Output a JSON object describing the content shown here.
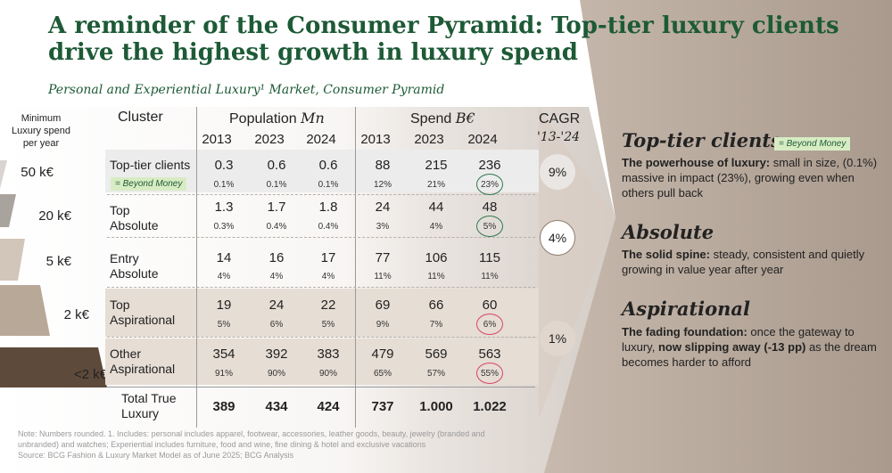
{
  "title": "A reminder of the Consumer Pyramid: Top-tier luxury clients drive the highest growth in luxury spend",
  "subtitle": "Personal and Experiential Luxury¹ Market, Consumer Pyramid",
  "pyramid": {
    "header": "Minimum Luxury spend per year",
    "levels": [
      "50 k€",
      "20 k€",
      "5 k€",
      "2 k€",
      "<2 k€"
    ]
  },
  "table": {
    "cluster_header": "Cluster",
    "population_header": "Population",
    "population_unit": "Mn",
    "spend_header": "Spend",
    "spend_unit": "B€",
    "years": [
      "2013",
      "2023",
      "2024"
    ],
    "cagr_header": "CAGR",
    "cagr_period": "'13-'24",
    "beyond_money_tag": "= Beyond Money",
    "rows": [
      {
        "name_line1": "Top-tier clients",
        "name_line2": "",
        "pop": [
          "0.3",
          "0.6",
          "0.6"
        ],
        "pop_share": [
          "0.1%",
          "0.1%",
          "0.1%"
        ],
        "spend": [
          "88",
          "215",
          "236"
        ],
        "spend_share": [
          "12%",
          "21%",
          "23%"
        ]
      },
      {
        "name_line1": "Top",
        "name_line2": "Absolute",
        "pop": [
          "1.3",
          "1.7",
          "1.8"
        ],
        "pop_share": [
          "0.3%",
          "0.4%",
          "0.4%"
        ],
        "spend": [
          "24",
          "44",
          "48"
        ],
        "spend_share": [
          "3%",
          "4%",
          "5%"
        ]
      },
      {
        "name_line1": "Entry",
        "name_line2": "Absolute",
        "pop": [
          "14",
          "16",
          "17"
        ],
        "pop_share": [
          "4%",
          "4%",
          "4%"
        ],
        "spend": [
          "77",
          "106",
          "115"
        ],
        "spend_share": [
          "11%",
          "11%",
          "11%"
        ]
      },
      {
        "name_line1": "Top",
        "name_line2": "Aspirational",
        "pop": [
          "19",
          "24",
          "22"
        ],
        "pop_share": [
          "5%",
          "6%",
          "5%"
        ],
        "spend": [
          "69",
          "66",
          "60"
        ],
        "spend_share": [
          "9%",
          "7%",
          "6%"
        ]
      },
      {
        "name_line1": "Other",
        "name_line2": "Aspirational",
        "pop": [
          "354",
          "392",
          "383"
        ],
        "pop_share": [
          "91%",
          "90%",
          "90%"
        ],
        "spend": [
          "479",
          "569",
          "563"
        ],
        "spend_share": [
          "65%",
          "57%",
          "55%"
        ]
      }
    ],
    "total": {
      "name_line1": "Total True",
      "name_line2": "Luxury",
      "pop": [
        "389",
        "434",
        "424"
      ],
      "spend": [
        "737",
        "1.000",
        "1.022"
      ]
    },
    "cagr": [
      "9%",
      "4%",
      "1%"
    ]
  },
  "segments": [
    {
      "title": "Top-tier clients",
      "tag": "= Beyond Money",
      "desc_bold": "The powerhouse of luxury:",
      "desc_rest": " small in size, (0.1%) massive in impact (23%), growing even when others pull back"
    },
    {
      "title": "Absolute",
      "desc_bold": "The solid spine:",
      "desc_rest": " steady, consistent and quietly growing in value year after year"
    },
    {
      "title": "Aspirational",
      "desc_pre": "The fading foundation:",
      "desc_pre_rest": " once the gateway to luxury, ",
      "desc_bold": "now slipping away (-13 pp)",
      "desc_rest": " as the dream becomes harder to afford"
    }
  ],
  "note": {
    "line1": "Note: Numbers rounded. 1. Includes: personal includes apparel, footwear, accessories, leather goods, beauty, jewelry (branded and unbranded) and watches; Experiential includes furniture, food and wine, fine dining & hotel and exclusive vacations",
    "line2": "Source: BCG Fashion & Luxury Market Model as of June 2025; BCG Analysis"
  },
  "chart_data": {
    "type": "table",
    "title": "A reminder of the Consumer Pyramid: Top-tier luxury clients drive the highest growth in luxury spend",
    "subtitle": "Personal and Experiential Luxury¹ Market, Consumer Pyramid",
    "columns": [
      "Cluster",
      "Population Mn 2013",
      "Population Mn 2023",
      "Population Mn 2024",
      "Spend B€ 2013",
      "Spend B€ 2023",
      "Spend B€ 2024"
    ],
    "rows": [
      [
        "Top-tier clients",
        0.3,
        0.6,
        0.6,
        88,
        215,
        236
      ],
      [
        "Top Absolute",
        1.3,
        1.7,
        1.8,
        24,
        44,
        48
      ],
      [
        "Entry Absolute",
        14,
        16,
        17,
        77,
        106,
        115
      ],
      [
        "Top Aspirational",
        19,
        24,
        22,
        69,
        66,
        60
      ],
      [
        "Other Aspirational",
        354,
        392,
        383,
        479,
        569,
        563
      ],
      [
        "Total True Luxury",
        389,
        434,
        424,
        737,
        1000,
        1022
      ]
    ],
    "cagr_13_24": {
      "Top-tier clients": "9%",
      "Absolute": "4%",
      "Aspirational": "1%"
    }
  }
}
